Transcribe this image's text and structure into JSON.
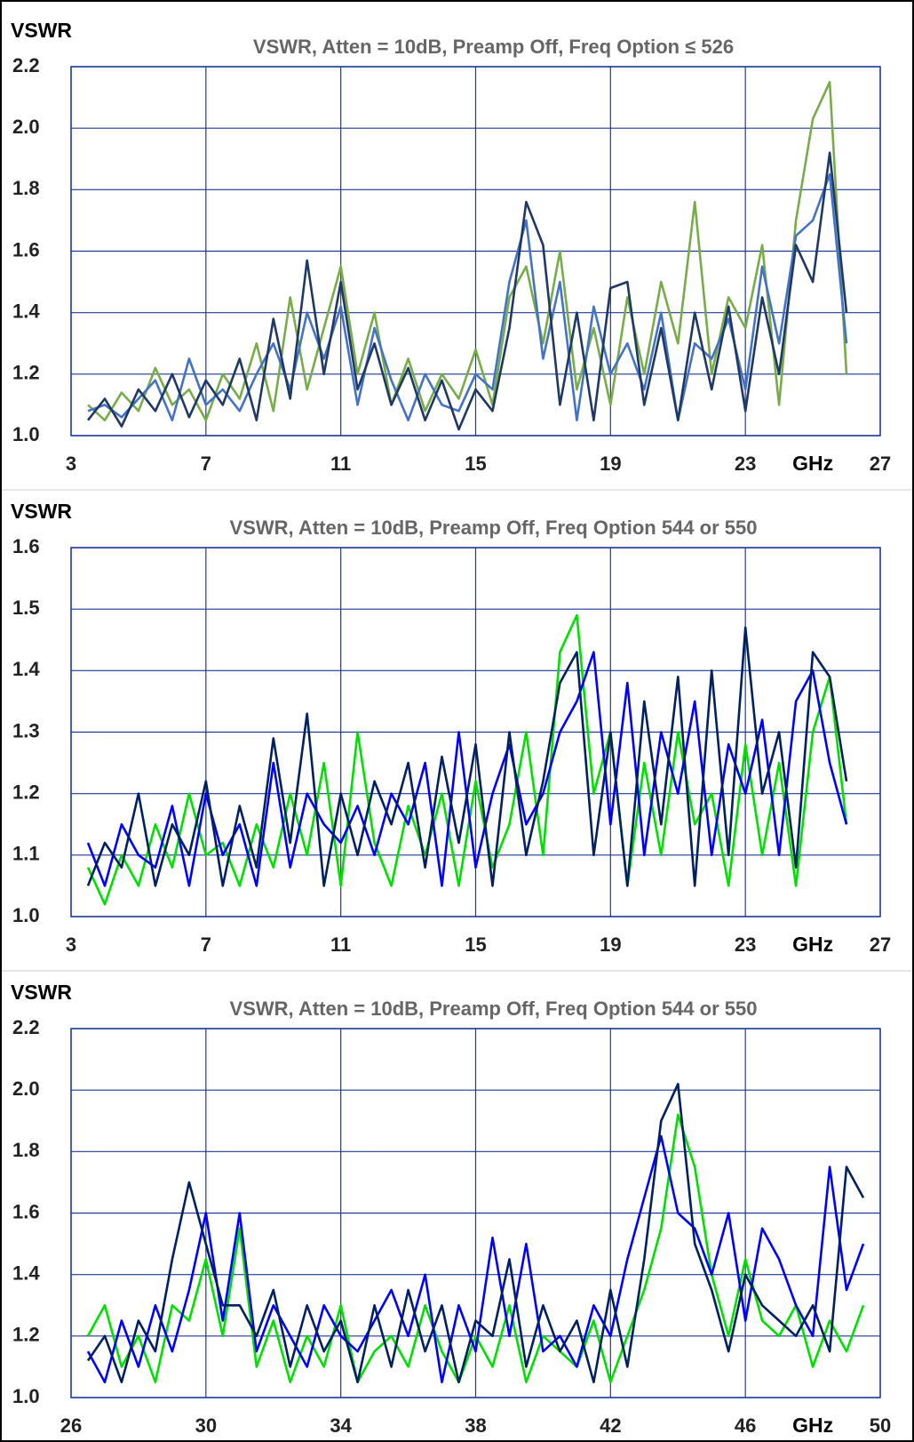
{
  "chart_data": [
    {
      "type": "line",
      "title": "VSWR, Atten = 10dB, Preamp Off, Freq Option ≤ 526",
      "y_label": "VSWR",
      "x_label": "GHz",
      "x": [
        3.5,
        4,
        4.5,
        5,
        5.5,
        6,
        6.5,
        7,
        7.5,
        8,
        8.5,
        9,
        9.5,
        10,
        10.5,
        11,
        11.5,
        12,
        12.5,
        13,
        13.5,
        14,
        14.5,
        15,
        15.5,
        16,
        16.5,
        17,
        17.5,
        18,
        18.5,
        19,
        19.5,
        20,
        20.5,
        21,
        21.5,
        22,
        22.5,
        23,
        23.5,
        24,
        24.5,
        25,
        25.5,
        26
      ],
      "series": [
        {
          "color": "#77ac48",
          "values": [
            1.1,
            1.05,
            1.14,
            1.08,
            1.22,
            1.1,
            1.15,
            1.05,
            1.2,
            1.12,
            1.3,
            1.08,
            1.45,
            1.15,
            1.35,
            1.55,
            1.2,
            1.4,
            1.1,
            1.25,
            1.08,
            1.2,
            1.12,
            1.28,
            1.1,
            1.45,
            1.55,
            1.3,
            1.6,
            1.15,
            1.35,
            1.1,
            1.45,
            1.2,
            1.5,
            1.3,
            1.76,
            1.2,
            1.45,
            1.35,
            1.62,
            1.1,
            1.7,
            2.03,
            2.15,
            1.2
          ]
        },
        {
          "color": "#4472c4",
          "values": [
            1.08,
            1.1,
            1.06,
            1.12,
            1.18,
            1.05,
            1.25,
            1.1,
            1.15,
            1.08,
            1.2,
            1.3,
            1.15,
            1.4,
            1.25,
            1.42,
            1.1,
            1.35,
            1.18,
            1.05,
            1.2,
            1.1,
            1.08,
            1.2,
            1.15,
            1.5,
            1.7,
            1.25,
            1.5,
            1.05,
            1.42,
            1.2,
            1.3,
            1.15,
            1.4,
            1.05,
            1.3,
            1.25,
            1.38,
            1.15,
            1.55,
            1.3,
            1.65,
            1.7,
            1.85,
            1.3
          ]
        },
        {
          "color": "#1f3864",
          "values": [
            1.05,
            1.12,
            1.03,
            1.15,
            1.08,
            1.2,
            1.06,
            1.18,
            1.1,
            1.25,
            1.05,
            1.38,
            1.12,
            1.57,
            1.2,
            1.5,
            1.15,
            1.3,
            1.1,
            1.22,
            1.05,
            1.18,
            1.02,
            1.15,
            1.08,
            1.35,
            1.76,
            1.62,
            1.1,
            1.4,
            1.05,
            1.48,
            1.5,
            1.1,
            1.35,
            1.05,
            1.4,
            1.15,
            1.42,
            1.08,
            1.45,
            1.2,
            1.62,
            1.5,
            1.92,
            1.4
          ]
        }
      ],
      "xlim": [
        3,
        27
      ],
      "ylim": [
        1,
        2.2
      ],
      "xticks": [
        3,
        7,
        11,
        15,
        19,
        23,
        27
      ],
      "yticks": [
        {
          "value": 1,
          "label": "1.0"
        },
        1.2,
        1.4,
        1.6,
        1.8,
        {
          "value": 2,
          "label": "2.0"
        },
        2.2
      ],
      "grid": true
    },
    {
      "type": "line",
      "title": "VSWR, Atten = 10dB, Preamp Off, Freq Option 544 or 550",
      "y_label": "VSWR",
      "x_label": "GHz",
      "x": [
        3.5,
        4,
        4.5,
        5,
        5.5,
        6,
        6.5,
        7,
        7.5,
        8,
        8.5,
        9,
        9.5,
        10,
        10.5,
        11,
        11.5,
        12,
        12.5,
        13,
        13.5,
        14,
        14.5,
        15,
        15.5,
        16,
        16.5,
        17,
        17.5,
        18,
        18.5,
        19,
        19.5,
        20,
        20.5,
        21,
        21.5,
        22,
        22.5,
        23,
        23.5,
        24,
        24.5,
        25,
        25.5,
        26
      ],
      "series": [
        {
          "color": "#00e000",
          "values": [
            1.08,
            1.02,
            1.1,
            1.05,
            1.15,
            1.08,
            1.2,
            1.1,
            1.12,
            1.05,
            1.15,
            1.08,
            1.2,
            1.1,
            1.25,
            1.05,
            1.3,
            1.12,
            1.05,
            1.18,
            1.1,
            1.2,
            1.05,
            1.22,
            1.08,
            1.15,
            1.3,
            1.1,
            1.43,
            1.49,
            1.2,
            1.3,
            1.05,
            1.25,
            1.1,
            1.3,
            1.15,
            1.2,
            1.05,
            1.28,
            1.1,
            1.25,
            1.05,
            1.3,
            1.39,
            1.15
          ]
        },
        {
          "color": "#0000ff",
          "values": [
            1.12,
            1.05,
            1.15,
            1.1,
            1.08,
            1.18,
            1.05,
            1.2,
            1.1,
            1.15,
            1.05,
            1.25,
            1.08,
            1.2,
            1.15,
            1.12,
            1.18,
            1.1,
            1.2,
            1.15,
            1.25,
            1.05,
            1.3,
            1.08,
            1.2,
            1.28,
            1.15,
            1.2,
            1.3,
            1.35,
            1.43,
            1.15,
            1.38,
            1.1,
            1.3,
            1.2,
            1.35,
            1.1,
            1.28,
            1.2,
            1.32,
            1.1,
            1.35,
            1.4,
            1.25,
            1.15
          ]
        },
        {
          "color": "#002060",
          "values": [
            1.05,
            1.12,
            1.08,
            1.2,
            1.05,
            1.15,
            1.1,
            1.22,
            1.05,
            1.18,
            1.08,
            1.29,
            1.12,
            1.33,
            1.05,
            1.2,
            1.1,
            1.22,
            1.15,
            1.25,
            1.08,
            1.26,
            1.12,
            1.28,
            1.05,
            1.3,
            1.1,
            1.22,
            1.38,
            1.43,
            1.1,
            1.3,
            1.05,
            1.35,
            1.15,
            1.39,
            1.05,
            1.4,
            1.1,
            1.47,
            1.2,
            1.3,
            1.08,
            1.43,
            1.39,
            1.22
          ]
        }
      ],
      "xlim": [
        3,
        27
      ],
      "ylim": [
        1,
        1.6
      ],
      "xticks": [
        3,
        7,
        11,
        15,
        19,
        23,
        27
      ],
      "yticks": [
        {
          "value": 1,
          "label": "1.0"
        },
        1.1,
        1.2,
        1.3,
        1.4,
        1.5,
        1.6
      ],
      "grid": true
    },
    {
      "type": "line",
      "title": "VSWR, Atten = 10dB, Preamp Off, Freq Option 544 or 550",
      "y_label": "VSWR",
      "x_label": "GHz",
      "x": [
        26.5,
        27,
        27.5,
        28,
        28.5,
        29,
        29.5,
        30,
        30.5,
        31,
        31.5,
        32,
        32.5,
        33,
        33.5,
        34,
        34.5,
        35,
        35.5,
        36,
        36.5,
        37,
        37.5,
        38,
        38.5,
        39,
        39.5,
        40,
        40.5,
        41,
        41.5,
        42,
        42.5,
        43,
        43.5,
        44,
        44.5,
        45,
        45.5,
        46,
        46.5,
        47,
        47.5,
        48,
        48.5,
        49,
        49.5
      ],
      "series": [
        {
          "color": "#00e000",
          "values": [
            1.2,
            1.3,
            1.1,
            1.2,
            1.05,
            1.3,
            1.25,
            1.45,
            1.2,
            1.55,
            1.1,
            1.25,
            1.05,
            1.2,
            1.1,
            1.3,
            1.05,
            1.15,
            1.2,
            1.1,
            1.3,
            1.15,
            1.05,
            1.2,
            1.1,
            1.3,
            1.05,
            1.2,
            1.15,
            1.1,
            1.25,
            1.05,
            1.2,
            1.35,
            1.55,
            1.92,
            1.75,
            1.4,
            1.2,
            1.45,
            1.25,
            1.2,
            1.3,
            1.1,
            1.25,
            1.15,
            1.3
          ]
        },
        {
          "color": "#0000ff",
          "values": [
            1.15,
            1.05,
            1.25,
            1.1,
            1.3,
            1.15,
            1.35,
            1.6,
            1.25,
            1.6,
            1.15,
            1.3,
            1.2,
            1.1,
            1.3,
            1.2,
            1.15,
            1.25,
            1.35,
            1.2,
            1.4,
            1.05,
            1.3,
            1.15,
            1.52,
            1.2,
            1.5,
            1.15,
            1.2,
            1.1,
            1.3,
            1.2,
            1.45,
            1.65,
            1.85,
            1.6,
            1.55,
            1.4,
            1.6,
            1.25,
            1.55,
            1.45,
            1.3,
            1.2,
            1.75,
            1.35,
            1.5
          ]
        },
        {
          "color": "#002060",
          "values": [
            1.12,
            1.2,
            1.05,
            1.25,
            1.15,
            1.45,
            1.7,
            1.5,
            1.3,
            1.3,
            1.2,
            1.35,
            1.1,
            1.3,
            1.15,
            1.25,
            1.05,
            1.3,
            1.1,
            1.35,
            1.15,
            1.3,
            1.05,
            1.25,
            1.2,
            1.45,
            1.1,
            1.3,
            1.15,
            1.25,
            1.05,
            1.35,
            1.1,
            1.45,
            1.9,
            2.02,
            1.5,
            1.35,
            1.15,
            1.4,
            1.3,
            1.25,
            1.2,
            1.3,
            1.15,
            1.75,
            1.65
          ]
        }
      ],
      "xlim": [
        26,
        50
      ],
      "ylim": [
        1,
        2.2
      ],
      "xticks": [
        26,
        30,
        34,
        38,
        42,
        46,
        50
      ],
      "yticks": [
        {
          "value": 1,
          "label": "1.0"
        },
        1.2,
        1.4,
        1.6,
        1.8,
        {
          "value": 2,
          "label": "2.0"
        },
        2.2
      ],
      "grid": true
    }
  ]
}
